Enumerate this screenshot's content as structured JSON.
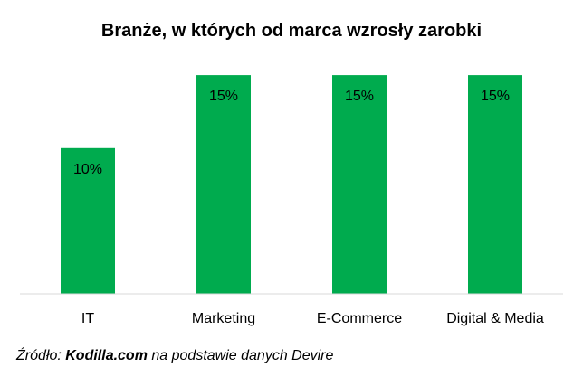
{
  "chart_data": {
    "type": "bar",
    "title": "Branże, w których od marca wzrosły zarobki",
    "categories": [
      "IT",
      "Marketing",
      "E-Commerce",
      "Digital & Media"
    ],
    "values": [
      10,
      15,
      15,
      15
    ],
    "data_labels": [
      "10%",
      "15%",
      "15%",
      "15%"
    ],
    "ylim": [
      0,
      16
    ],
    "bar_color": "#00AB4E",
    "axis_color": "#D9D9D9",
    "grid": false,
    "legend": "none"
  },
  "source": {
    "prefix": "Źródło: ",
    "brand": "Kodilla.com",
    "suffix": " na podstawie danych Devire"
  }
}
